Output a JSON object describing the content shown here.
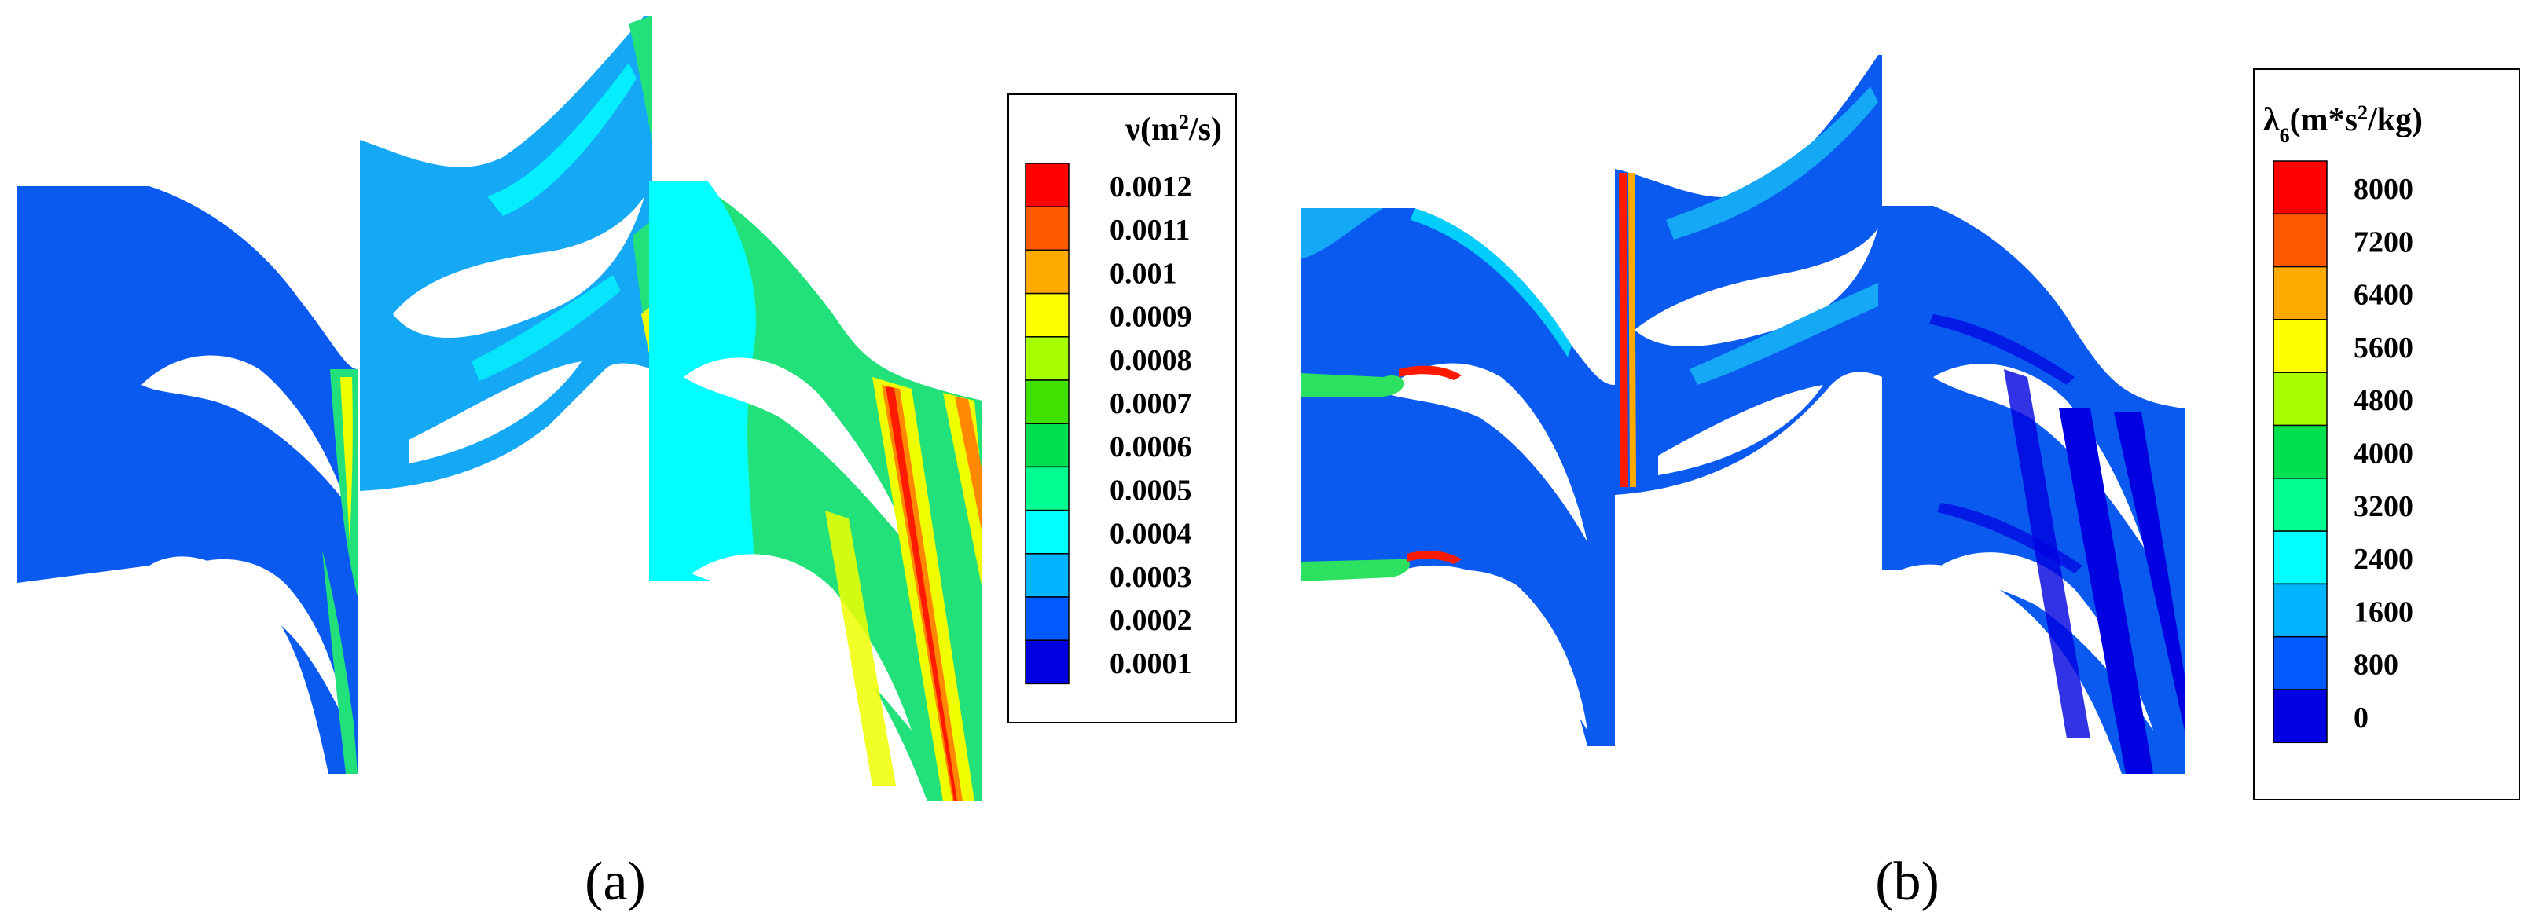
{
  "panels": [
    {
      "id": "a",
      "caption": "(a)",
      "legend": {
        "title_symbol": "ν",
        "title_unit_pre": "(m",
        "title_unit_sup": "2",
        "title_unit_post": "/s)",
        "ticks": [
          "0.0012",
          "0.0011",
          "0.001",
          "0.0009",
          "0.0008",
          "0.0007",
          "0.0006",
          "0.0005",
          "0.0004",
          "0.0003",
          "0.0002",
          "0.0001"
        ]
      }
    },
    {
      "id": "b",
      "caption": "(b)",
      "legend": {
        "title_symbol": "λ",
        "title_sub": "6",
        "title_unit_pre": "(m*s",
        "title_unit_sup": "2",
        "title_unit_post": "/kg)",
        "ticks": [
          "8000",
          "7200",
          "6400",
          "5600",
          "4800",
          "4000",
          "3200",
          "2400",
          "1600",
          "800",
          "0"
        ]
      }
    }
  ],
  "colormap": {
    "levels_top_to_bottom": [
      "#ff0000",
      "#ff5a00",
      "#ffaa00",
      "#ffff00",
      "#a8ff00",
      "#40e000",
      "#00e050",
      "#00ff90",
      "#00ffff",
      "#00b4ff",
      "#005aff",
      "#0000e0"
    ],
    "blue_dark": "#0000e0",
    "blue_main": "#0a5af0",
    "blue_light": "#14a8f5",
    "cyan": "#00ffff",
    "green_light": "#22e07a",
    "green": "#2ce060",
    "yellow": "#f0ff00",
    "orange": "#ff8800",
    "red": "#ff1a00"
  }
}
